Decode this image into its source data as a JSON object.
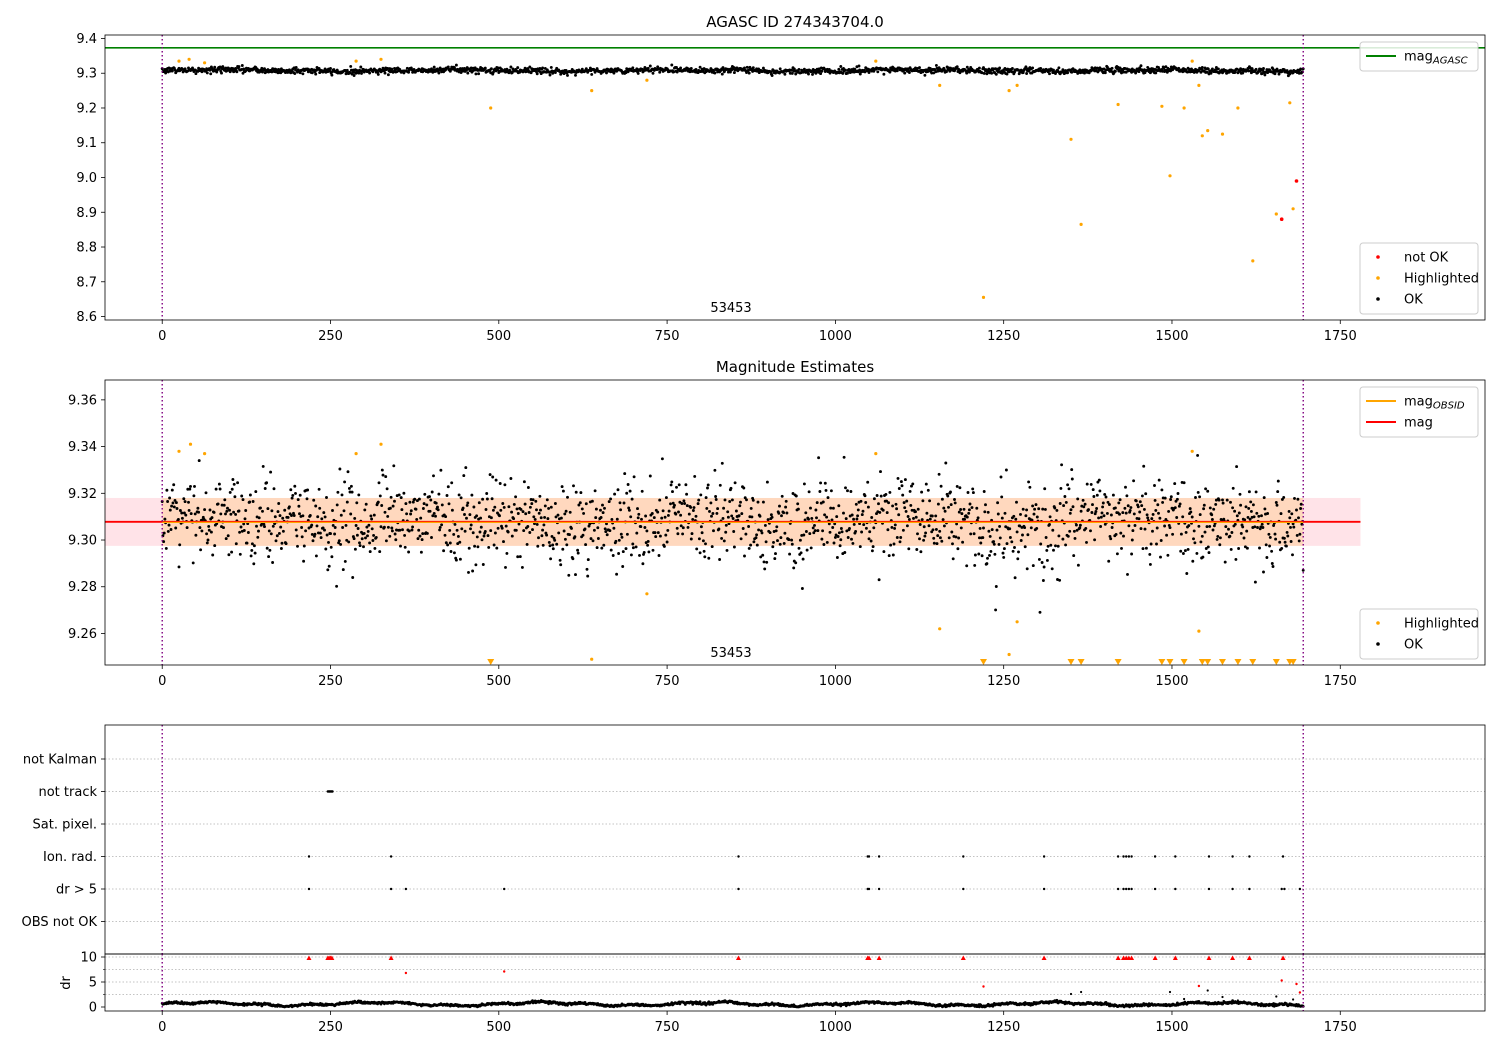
{
  "chart_data": [
    {
      "type": "scatter",
      "title": "AGASC ID 274343704.0",
      "xlim": [
        -85,
        1965
      ],
      "ylim": [
        8.59,
        9.41
      ],
      "xticks": [
        "0",
        "250",
        "500",
        "750",
        "1000",
        "1250",
        "1500",
        "1750"
      ],
      "yticks": [
        "8.6",
        "8.7",
        "8.8",
        "8.9",
        "9.0",
        "9.1",
        "9.2",
        "9.3",
        "9.4"
      ],
      "annotation": "53453",
      "vlines_x": [
        0,
        1695
      ],
      "legend_top": {
        "position": "upper right",
        "entries": [
          {
            "label": "mag",
            "sub": "AGASC",
            "color": "#008000",
            "style": "line"
          }
        ]
      },
      "legend_bottom": {
        "position": "lower right",
        "entries": [
          {
            "label": "not OK",
            "color": "#ff0000",
            "style": "point"
          },
          {
            "label": "Highlighted",
            "color": "#ffa500",
            "style": "point"
          },
          {
            "label": "OK",
            "color": "#000000",
            "style": "point"
          }
        ]
      },
      "hlines": [
        {
          "name": "mag AGASC",
          "y": 9.373,
          "color": "#008000"
        }
      ],
      "series": [
        {
          "name": "OK",
          "color": "#000000",
          "description": "about 1700 points, x from 0 to 1695, y ~ 9.31 +/- 0.01",
          "x_range": [
            0,
            1695
          ],
          "y_mean": 9.308,
          "y_spread": 0.01
        },
        {
          "name": "Highlighted",
          "color": "#ffa500",
          "points": [
            [
              25,
              9.335
            ],
            [
              40,
              9.34
            ],
            [
              63,
              9.33
            ],
            [
              288,
              9.335
            ],
            [
              325,
              9.34
            ],
            [
              488,
              9.2
            ],
            [
              638,
              9.25
            ],
            [
              720,
              9.28
            ],
            [
              1060,
              9.335
            ],
            [
              1155,
              9.265
            ],
            [
              1220,
              8.655
            ],
            [
              1258,
              9.25
            ],
            [
              1270,
              9.265
            ],
            [
              1350,
              9.11
            ],
            [
              1365,
              8.865
            ],
            [
              1420,
              9.21
            ],
            [
              1485,
              9.205
            ],
            [
              1497,
              9.005
            ],
            [
              1518,
              9.2
            ],
            [
              1530,
              9.335
            ],
            [
              1540,
              9.265
            ],
            [
              1545,
              9.12
            ],
            [
              1553,
              9.135
            ],
            [
              1575,
              9.125
            ],
            [
              1598,
              9.2
            ],
            [
              1620,
              8.76
            ],
            [
              1655,
              8.895
            ],
            [
              1675,
              9.215
            ],
            [
              1680,
              8.91
            ]
          ]
        },
        {
          "name": "not OK",
          "color": "#ff0000",
          "points": [
            [
              1663,
              8.88
            ],
            [
              1685,
              8.99
            ]
          ]
        }
      ]
    },
    {
      "type": "scatter",
      "title": "Magnitude Estimates",
      "xlim": [
        -85,
        1965
      ],
      "ylim": [
        9.2465,
        9.3685
      ],
      "xticks": [
        "0",
        "250",
        "500",
        "750",
        "1000",
        "1250",
        "1500",
        "1750"
      ],
      "yticks": [
        "9.26",
        "9.28",
        "9.30",
        "9.32",
        "9.34",
        "9.36"
      ],
      "annotation": "53453",
      "vlines_x": [
        0,
        1695
      ],
      "legend_top": {
        "position": "upper right",
        "entries": [
          {
            "label": "mag",
            "sub": "OBSID",
            "color": "#ffa500",
            "style": "line"
          },
          {
            "label": "mag",
            "sub": "",
            "color": "#ff0000",
            "style": "line"
          }
        ]
      },
      "legend_bottom": {
        "position": "lower right",
        "entries": [
          {
            "label": "Highlighted",
            "color": "#ffa500",
            "style": "point"
          },
          {
            "label": "OK",
            "color": "#000000",
            "style": "point"
          }
        ]
      },
      "hlines": [
        {
          "name": "mag",
          "y": 9.3078,
          "color": "#ff0000",
          "x_range": [
            -85,
            1780
          ]
        },
        {
          "name": "mag OBSID",
          "y": 9.3078,
          "color": "#ffa500",
          "x_range": [
            0,
            1695
          ]
        }
      ],
      "bands": [
        {
          "name": "mag band",
          "y": [
            9.2975,
            9.318
          ],
          "x_range": [
            -85,
            1780
          ],
          "color": "#ffc0cb"
        },
        {
          "name": "mag OBSID band",
          "y": [
            9.2975,
            9.318
          ],
          "x_range": [
            0,
            1695
          ],
          "color": "#ffa500"
        }
      ],
      "series": [
        {
          "name": "OK",
          "color": "#000000",
          "description": "about 1700 points, x from 0 to 1695, y ~ 9.308 +/- 0.01",
          "x_range": [
            0,
            1695
          ],
          "y_mean": 9.308,
          "y_spread": 0.009
        },
        {
          "name": "Highlighted",
          "color": "#ffa500",
          "points": [
            [
              25,
              9.338
            ],
            [
              42,
              9.341
            ],
            [
              63,
              9.337
            ],
            [
              288,
              9.337
            ],
            [
              325,
              9.341
            ],
            [
              720,
              9.277
            ],
            [
              638,
              9.249
            ],
            [
              1060,
              9.337
            ],
            [
              1155,
              9.262
            ],
            [
              1258,
              9.251
            ],
            [
              1270,
              9.265
            ],
            [
              1530,
              9.338
            ],
            [
              1540,
              9.261
            ]
          ]
        },
        {
          "name": "Highlighted below range",
          "color": "#ffa500",
          "marker": "triangle-down",
          "x": [
            488,
            1220,
            1350,
            1365,
            1420,
            1485,
            1497,
            1518,
            1545,
            1553,
            1575,
            1598,
            1620,
            1655,
            1675,
            1680
          ]
        }
      ]
    },
    {
      "type": "scatter",
      "title": "",
      "xlim": [
        -85,
        1965
      ],
      "categories": [
        "not Kalman",
        "not track",
        "Sat. pixel.",
        "Ion. rad.",
        "dr > 5",
        "OBS not OK"
      ],
      "vlines_x": [
        0,
        1695
      ],
      "flags": {
        "not track": [
          246,
          247,
          248,
          249,
          250,
          251,
          252,
          253
        ],
        "Ion. rad.": [
          218,
          340,
          856,
          1048,
          1050,
          1065,
          1190,
          1310,
          1420,
          1428,
          1432,
          1436,
          1440,
          1475,
          1505,
          1555,
          1590,
          1615,
          1665
        ],
        "dr > 5": [
          218,
          340,
          362,
          508,
          856,
          1048,
          1050,
          1065,
          1190,
          1310,
          1420,
          1428,
          1432,
          1436,
          1440,
          1475,
          1505,
          1555,
          1590,
          1615,
          1663,
          1667,
          1690
        ]
      }
    },
    {
      "type": "scatter",
      "title": "",
      "ylabel": "dr",
      "xlim": [
        -85,
        1965
      ],
      "ylim": [
        -0.8,
        10.6
      ],
      "xticks": [
        "0",
        "250",
        "500",
        "750",
        "1000",
        "1250",
        "1500",
        "1750"
      ],
      "yticks": [
        "0",
        "5",
        "10"
      ],
      "vlines_x": [
        0,
        1695
      ],
      "series": [
        {
          "name": "dr",
          "color": "#000000",
          "description": "about 1700 points, x from 0 to 1695, y ~ 0.6 (0 to 1.3)",
          "x_range": [
            0,
            1695
          ]
        },
        {
          "name": "dr above 10",
          "color": "#ff0000",
          "marker": "triangle-up",
          "x": [
            218,
            246,
            248,
            250,
            252,
            340,
            856,
            1048,
            1050,
            1065,
            1190,
            1310,
            1420,
            1428,
            1432,
            1436,
            1440,
            1475,
            1505,
            1555,
            1590,
            1615,
            1665
          ]
        },
        {
          "name": "dr red points",
          "color": "#ff0000",
          "points": [
            [
              362,
              6.8
            ],
            [
              508,
              7.1
            ],
            [
              1220,
              4.1
            ],
            [
              1540,
              4.2
            ],
            [
              1663,
              5.3
            ],
            [
              1685,
              4.6
            ],
            [
              1690,
              2.9
            ]
          ]
        },
        {
          "name": "dr scattered points",
          "color": "#000000",
          "points": [
            [
              1350,
              2.6
            ],
            [
              1365,
              3.0
            ],
            [
              1497,
              3.0
            ],
            [
              1518,
              1.6
            ],
            [
              1553,
              3.3
            ],
            [
              1575,
              2.0
            ],
            [
              1598,
              1.3
            ],
            [
              1655,
              2.1
            ],
            [
              1680,
              1.5
            ]
          ]
        }
      ]
    }
  ]
}
